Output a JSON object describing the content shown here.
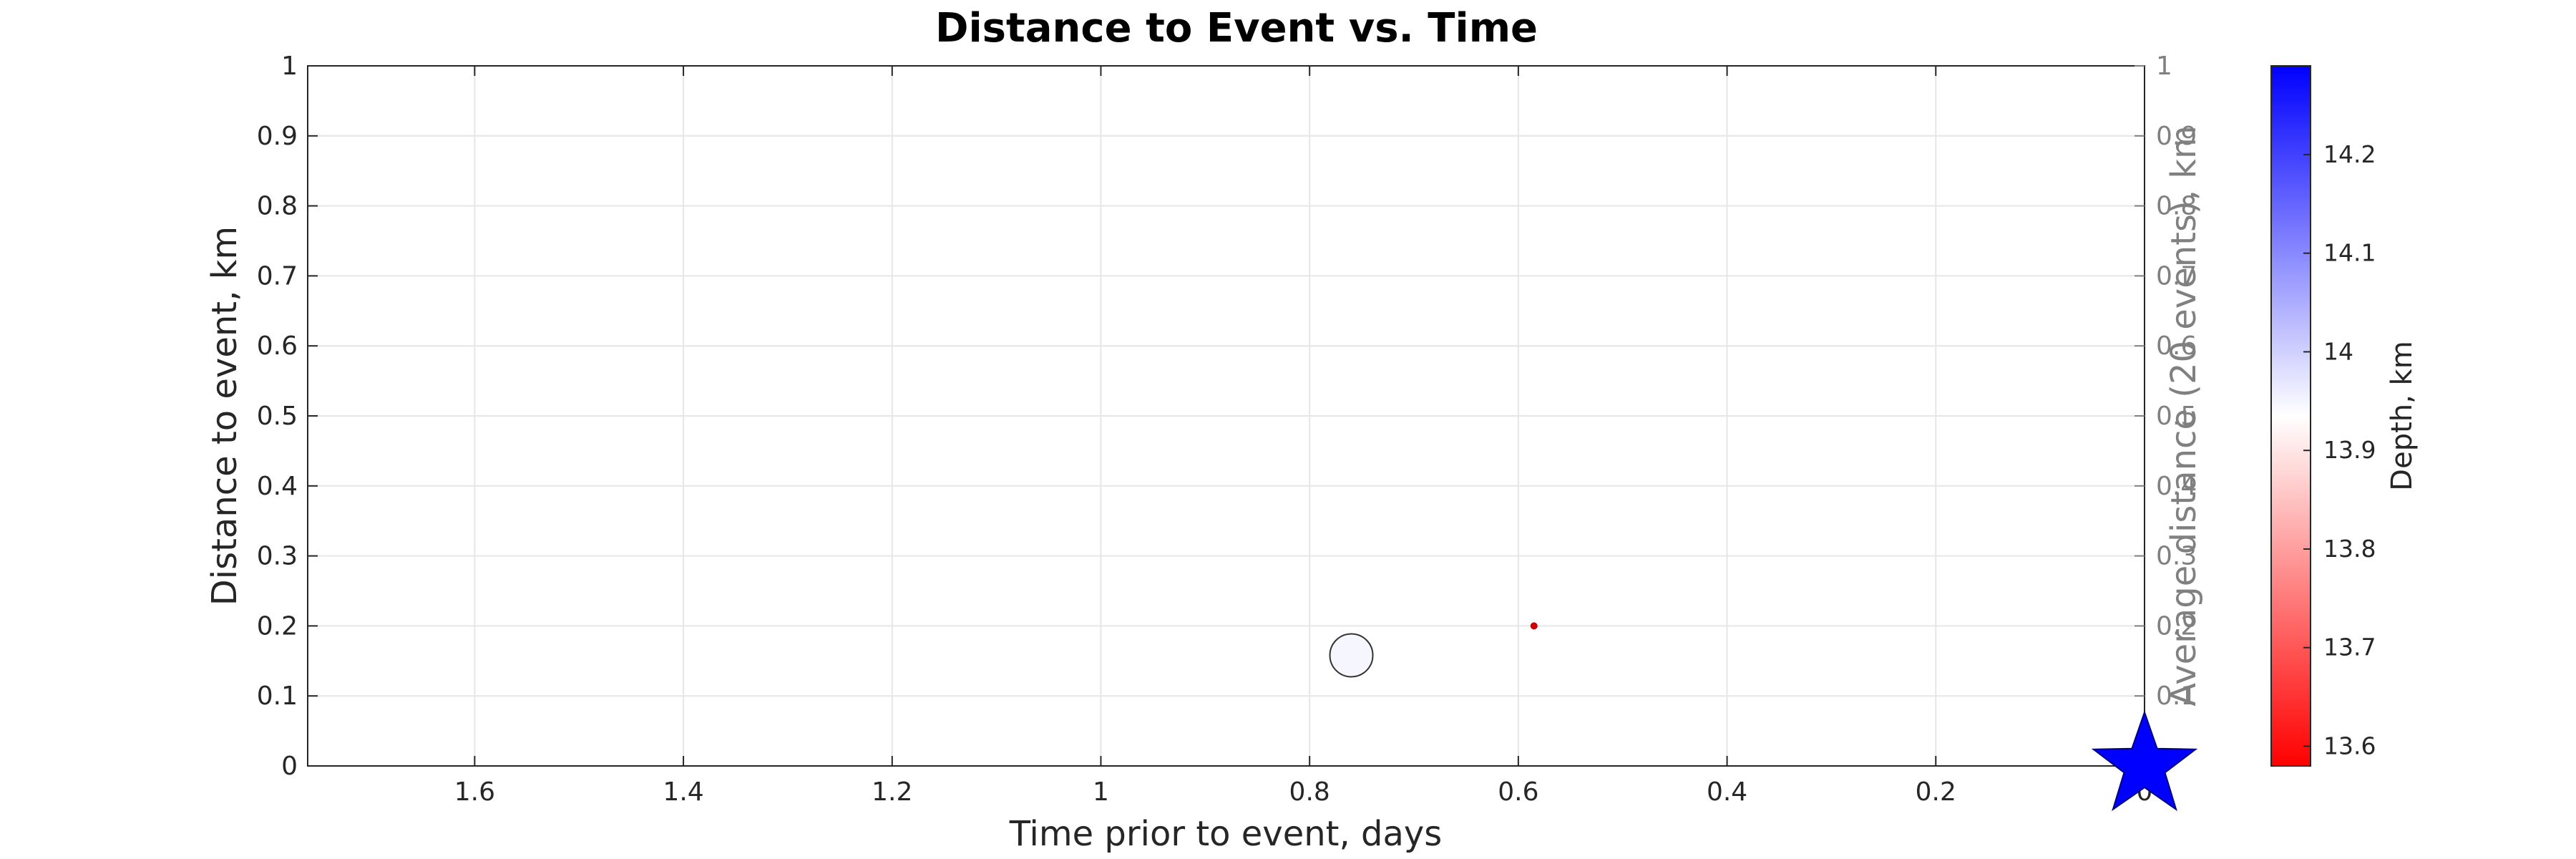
{
  "chart_data": {
    "type": "scatter",
    "title": "Distance to Event vs. Time",
    "xlabel": "Time prior to event, days",
    "ylabel": "Distance to event, km",
    "y2label": "Average distance (20 events), km",
    "colorbar_label": "Depth, km",
    "x_reversed": true,
    "xlim": [
      0,
      1.76
    ],
    "ylim": [
      0,
      1
    ],
    "y2lim": [
      0,
      1
    ],
    "grid": true,
    "x_ticks": [
      "1.6",
      "1.4",
      "1.2",
      "1",
      "0.8",
      "0.6",
      "0.4",
      "0.2",
      "0"
    ],
    "y_ticks": [
      "0",
      "0.1",
      "0.2",
      "0.3",
      "0.4",
      "0.5",
      "0.6",
      "0.7",
      "0.8",
      "0.9",
      "1"
    ],
    "y2_ticks": [
      "0.1",
      "0.2",
      "0.3",
      "0.4",
      "0.5",
      "0.6",
      "0.7",
      "0.8",
      "0.9",
      "1"
    ],
    "colorbar": {
      "range": [
        13.58,
        14.29
      ],
      "ticks": [
        "13.6",
        "13.7",
        "13.8",
        "13.9",
        "14",
        "14.1",
        "14.2"
      ],
      "colormap": [
        "#ff0000",
        "#ffffff",
        "#0000ff"
      ]
    },
    "points": [
      {
        "x": 0.76,
        "y": 0.158,
        "depth": 13.98,
        "size": "large",
        "color": "#f6f6ff"
      },
      {
        "x": 0.585,
        "y": 0.2,
        "depth": 13.6,
        "size": "tiny",
        "color": "#cc0000"
      }
    ],
    "mainshock": {
      "x": 0,
      "y": 0,
      "marker": "star",
      "color": "#0000ff"
    }
  }
}
